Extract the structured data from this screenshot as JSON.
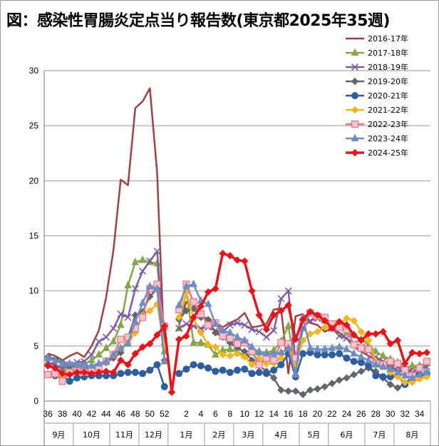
{
  "title": "図：感染性胃腸炎定点当り報告数(東京都2025年35週)",
  "chart_data": {
    "type": "line",
    "title": "図：感染性胃腸炎定点当り報告数(東京都2025年35週)",
    "xlabel": "",
    "ylabel": "",
    "ylim": [
      0,
      30
    ],
    "yticks": [
      0,
      5,
      10,
      15,
      20,
      25,
      30
    ],
    "grid": true,
    "legend_position": "top-right",
    "weeks": [
      36,
      37,
      38,
      39,
      40,
      41,
      42,
      43,
      44,
      45,
      46,
      47,
      48,
      49,
      50,
      51,
      52,
      53,
      1,
      2,
      3,
      4,
      5,
      6,
      7,
      8,
      9,
      10,
      11,
      12,
      13,
      14,
      15,
      16,
      17,
      18,
      19,
      20,
      21,
      22,
      23,
      24,
      25,
      26,
      27,
      28,
      29,
      30,
      31,
      32,
      33,
      34,
      35
    ],
    "week_tick_labels": [
      "36",
      "38",
      "40",
      "42",
      "44",
      "46",
      "48",
      "50",
      "52",
      "2",
      "4",
      "6",
      "8",
      "10",
      "12",
      "14",
      "16",
      "18",
      "20",
      "22",
      "24",
      "26",
      "28",
      "30",
      "32",
      "34"
    ],
    "month_labels": [
      "9月",
      "10月",
      "11月",
      "12月",
      "1月",
      "2月",
      "3月",
      "4月",
      "5月",
      "6月",
      "7月",
      "8月"
    ],
    "series": [
      {
        "name": "2016-17年",
        "color": "#a0413c",
        "marker": "none",
        "values": [
          4.3,
          4.1,
          3.7,
          4.1,
          4.4,
          4.0,
          5.0,
          6.4,
          9.4,
          13.7,
          20.1,
          19.6,
          26.6,
          27.2,
          28.4,
          20.7,
          4.2,
          null,
          6.9,
          9.0,
          8.8,
          7.9,
          7.3,
          7.1,
          6.7,
          7.1,
          7.4,
          8.0,
          6.7,
          6.8,
          7.0,
          8.3,
          8.4,
          2.5,
          7.7,
          7.9,
          7.1,
          6.9,
          6.3,
          6.6,
          6.2,
          5.7,
          4.9,
          4.5,
          4.1,
          3.7,
          3.4,
          3.1,
          2.8,
          2.6,
          2.9,
          3.3,
          3.3
        ]
      },
      {
        "name": "2017-18年",
        "color": "#86a647",
        "marker": "triangle",
        "values": [
          3.5,
          3.2,
          2.9,
          3.0,
          3.3,
          3.4,
          3.7,
          4.2,
          4.8,
          5.4,
          6.9,
          10.5,
          12.6,
          12.8,
          12.6,
          12.5,
          4.5,
          null,
          6.6,
          10.0,
          5.3,
          5.3,
          5.1,
          4.2,
          4.6,
          4.7,
          4.5,
          4.1,
          4.4,
          4.5,
          4.4,
          4.6,
          5.4,
          6.8,
          3.0,
          6.6,
          8.0,
          7.6,
          7.3,
          6.9,
          6.8,
          6.2,
          6.0,
          5.6,
          5.1,
          4.5,
          4.1,
          3.8,
          3.5,
          3.0,
          3.2,
          3.2,
          3.4
        ]
      },
      {
        "name": "2018-19年",
        "color": "#7d5ba6",
        "marker": "x",
        "values": [
          3.5,
          3.3,
          3.0,
          3.3,
          3.5,
          3.6,
          4.2,
          5.4,
          5.8,
          6.6,
          7.9,
          7.6,
          10.2,
          11.8,
          12.7,
          13.6,
          5.4,
          null,
          6.6,
          7.0,
          6.8,
          6.6,
          6.7,
          6.4,
          6.3,
          6.9,
          7.1,
          6.9,
          6.5,
          6.3,
          5.8,
          6.4,
          9.3,
          10.0,
          3.6,
          6.7,
          7.3,
          7.5,
          7.4,
          6.6,
          5.9,
          5.7,
          5.2,
          4.9,
          4.5,
          4.0,
          3.6,
          3.3,
          3.1,
          2.9,
          2.6,
          3.0,
          3.1
        ]
      },
      {
        "name": "2019-20年",
        "color": "#61656e",
        "marker": "diamond",
        "values": [
          4.0,
          3.8,
          3.5,
          3.2,
          3.2,
          3.1,
          3.1,
          3.3,
          3.5,
          3.9,
          4.4,
          5.7,
          7.8,
          8.1,
          9.5,
          10.2,
          3.7,
          null,
          7.4,
          8.2,
          8.4,
          7.6,
          7.4,
          6.2,
          5.8,
          5.3,
          4.8,
          4.5,
          3.7,
          3.2,
          2.7,
          2.1,
          1.0,
          0.9,
          0.9,
          0.6,
          1.0,
          1.1,
          1.3,
          1.6,
          1.9,
          2.1,
          2.4,
          2.7,
          3.0,
          2.7,
          2.1,
          1.5,
          1.2,
          1.6,
          2.1,
          2.3,
          2.4
        ]
      },
      {
        "name": "2020-21年",
        "color": "#2e5f9c",
        "marker": "circle",
        "values": [
          2.4,
          2.3,
          2.3,
          1.8,
          2.1,
          2.2,
          2.3,
          2.3,
          2.3,
          2.3,
          2.5,
          2.6,
          2.6,
          2.5,
          2.8,
          3.3,
          1.3,
          null,
          2.5,
          2.9,
          3.3,
          3.2,
          3.0,
          2.7,
          2.8,
          2.6,
          2.8,
          2.9,
          2.5,
          2.6,
          2.5,
          2.8,
          3.3,
          4.3,
          2.2,
          4.3,
          4.4,
          4.2,
          4.2,
          4.2,
          4.3,
          3.9,
          3.6,
          3.5,
          3.2,
          2.3,
          2.2,
          2.2,
          2.3,
          1.5,
          2.3,
          2.4,
          2.5
        ]
      },
      {
        "name": "2021-22年",
        "color": "#f2b51d",
        "marker": "diamond",
        "values": [
          2.5,
          2.4,
          2.3,
          2.5,
          2.7,
          2.9,
          3.0,
          3.3,
          3.7,
          4.2,
          4.8,
          5.3,
          6.2,
          7.8,
          8.2,
          8.8,
          5.0,
          null,
          7.6,
          9.9,
          7.5,
          6.2,
          5.1,
          4.9,
          4.2,
          4.1,
          4.3,
          4.0,
          3.3,
          3.9,
          3.4,
          3.4,
          3.9,
          5.0,
          3.4,
          5.5,
          6.1,
          6.3,
          6.7,
          6.7,
          7.0,
          7.5,
          7.3,
          6.3,
          5.5,
          3.6,
          3.3,
          2.6,
          2.2,
          1.7,
          1.7,
          2.0,
          2.2
        ]
      },
      {
        "name": "2022-23年",
        "color": "#e0758b",
        "marker": "square",
        "values": [
          2.4,
          2.5,
          1.8,
          2.6,
          2.7,
          2.6,
          2.9,
          3.1,
          3.6,
          4.2,
          5.6,
          5.8,
          6.6,
          7.6,
          10.2,
          10.6,
          6.8,
          null,
          8.3,
          10.6,
          9.0,
          7.9,
          6.9,
          7.1,
          5.9,
          5.7,
          5.2,
          5.3,
          4.5,
          3.3,
          3.9,
          3.7,
          5.3,
          5.2,
          3.9,
          7.1,
          8.0,
          7.7,
          7.6,
          7.0,
          6.7,
          6.5,
          5.1,
          4.8,
          4.7,
          3.4,
          3.3,
          3.6,
          3.4,
          2.8,
          2.3,
          3.0,
          3.6
        ]
      },
      {
        "name": "2023-24年",
        "color": "#6f8dc0",
        "marker": "triangle",
        "values": [
          3.9,
          3.7,
          3.4,
          3.4,
          3.3,
          3.2,
          3.2,
          3.4,
          3.6,
          4.2,
          4.8,
          5.2,
          7.2,
          8.9,
          10.4,
          10.2,
          3.6,
          null,
          8.7,
          10.4,
          10.6,
          9.1,
          8.8,
          7.0,
          6.4,
          6.2,
          5.8,
          5.5,
          4.9,
          4.4,
          4.3,
          4.3,
          4.4,
          4.8,
          2.4,
          7.6,
          4.8,
          4.7,
          4.7,
          4.8,
          4.9,
          4.7,
          4.3,
          4.0,
          3.7,
          3.3,
          3.1,
          2.9,
          2.6,
          2.3,
          2.1,
          2.4,
          2.6
        ]
      },
      {
        "name": "2024-25年",
        "color": "#e8141c",
        "marker": "diamond",
        "values": [
          3.2,
          3.0,
          2.5,
          2.4,
          2.6,
          2.6,
          2.5,
          2.6,
          2.7,
          2.6,
          3.7,
          3.3,
          4.3,
          4.9,
          5.2,
          6.0,
          6.8,
          0.8,
          5.6,
          5.9,
          7.6,
          8.6,
          9.9,
          10.2,
          13.4,
          13.2,
          12.8,
          12.7,
          10.0,
          7.8,
          6.5,
          7.8,
          8.2,
          8.7,
          5.6,
          7.4,
          8.1,
          7.8,
          7.3,
          6.6,
          7.2,
          6.9,
          6.0,
          5.5,
          6.1,
          6.1,
          6.3,
          5.2,
          5.5,
          3.4,
          4.4,
          4.3,
          4.4
        ]
      }
    ]
  }
}
